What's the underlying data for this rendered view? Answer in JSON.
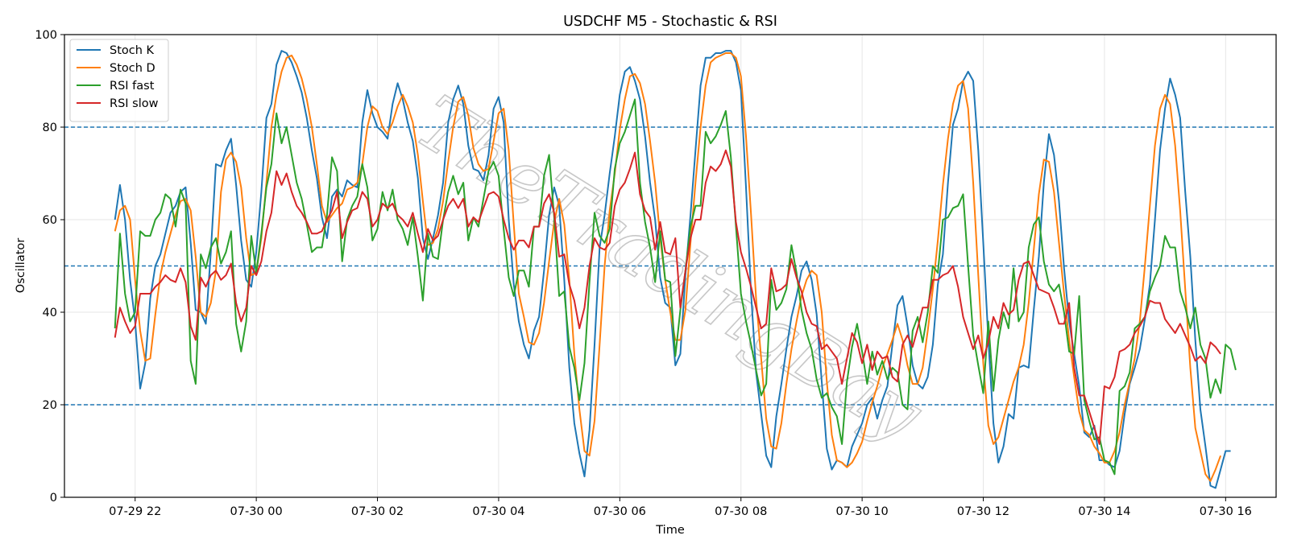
{
  "chart_data": {
    "type": "line",
    "title": "USDCHF M5 - Stochastic & RSI",
    "xlabel": "Time",
    "ylabel": "Oscillator",
    "ylim": [
      0,
      100
    ],
    "yticks": [
      0,
      20,
      40,
      60,
      80,
      100
    ],
    "xtick_labels": [
      "07-29 22",
      "07-30 00",
      "07-30 02",
      "07-30 04",
      "07-30 06",
      "07-30 08",
      "07-30 10",
      "07-30 12",
      "07-30 14",
      "07-30 16"
    ],
    "x_start": "2025-07-29 21:40",
    "x_step_minutes": 5,
    "x_range": [
      "2025-07-29 20:50",
      "2025-07-30 16:50"
    ],
    "reference_lines": [
      {
        "value": 80,
        "style": "dashed",
        "color": "#1f77b4"
      },
      {
        "value": 50,
        "style": "dashed",
        "color": "#1f77b4"
      },
      {
        "value": 20,
        "style": "dashed",
        "color": "#1f77b4"
      }
    ],
    "grid": true,
    "legend_position": "top-left",
    "watermark": "TheTradingBay",
    "series": [
      {
        "name": "Stoch K",
        "color": "#1f77b4",
        "values": [
          60,
          67.5,
          60,
          47,
          38,
          23.5,
          29,
          43,
          50,
          52.5,
          57,
          61.5,
          63,
          66,
          67,
          55,
          40.5,
          40,
          37.5,
          53,
          72,
          71.5,
          75,
          77.5,
          67.5,
          55.5,
          47,
          45.5,
          53,
          66,
          82,
          85,
          93.5,
          96.5,
          96,
          94,
          91,
          87.5,
          82,
          75,
          69,
          60.5,
          56,
          65,
          66.5,
          65,
          68.5,
          67.5,
          67,
          81,
          88,
          83,
          80,
          79,
          77.5,
          85,
          89.5,
          86,
          81,
          77,
          69,
          56,
          51.5,
          56,
          61,
          68,
          81,
          86,
          89,
          85,
          76,
          71,
          70.5,
          68.5,
          74,
          84,
          86.5,
          81,
          60,
          46,
          38,
          33,
          30,
          36,
          39,
          49,
          61,
          67,
          63,
          47,
          28,
          16,
          9.5,
          4.5,
          14.5,
          33,
          54,
          61,
          70,
          78,
          87,
          92,
          93,
          90,
          86,
          78,
          68,
          60,
          47.5,
          42,
          41,
          28.5,
          31,
          48,
          61,
          75,
          89,
          95,
          95,
          96,
          96,
          96.5,
          96.5,
          94,
          88,
          67,
          44,
          27,
          18,
          9,
          6.5,
          17.5,
          24.5,
          32,
          39,
          43.5,
          49,
          51,
          47,
          39.5,
          25,
          10.5,
          6,
          8,
          7.5,
          6.5,
          11,
          13.5,
          16,
          20,
          21.5,
          17,
          21,
          24,
          33,
          41.5,
          43.5,
          37,
          28.5,
          24.5,
          23.5,
          26,
          33,
          46,
          52.5,
          68,
          80.5,
          84,
          90,
          92,
          90,
          75,
          55,
          34,
          16,
          7.5,
          11,
          18,
          17,
          28,
          28.5,
          28,
          40.5,
          52,
          68,
          78.5,
          74,
          64,
          49.5,
          38,
          31,
          24,
          14,
          13,
          15.5,
          8,
          8,
          7,
          6.5,
          10,
          18,
          24.5,
          28,
          32,
          38.5,
          46,
          60,
          75,
          84,
          90.5,
          87,
          82,
          66,
          52,
          34,
          19,
          11,
          2.5,
          2,
          6,
          10,
          10
        ]
      },
      {
        "name": "Stoch D",
        "color": "#ff7f0e",
        "values": [
          57.5,
          62,
          63,
          60,
          47,
          36,
          29.5,
          30,
          39.5,
          48,
          53,
          57,
          61,
          64,
          64.5,
          62,
          52,
          40,
          39,
          42,
          49,
          66,
          73,
          74.5,
          72.5,
          67,
          56,
          48,
          48.5,
          56,
          68,
          80,
          87,
          92,
          95,
          95.5,
          93.5,
          90.5,
          86,
          80,
          72,
          63,
          59.5,
          61,
          62.5,
          63.5,
          66.5,
          67,
          68,
          72,
          80,
          84.5,
          83.5,
          80,
          78.5,
          81,
          84.5,
          87,
          84.5,
          81,
          74,
          64,
          54.5,
          55,
          58,
          64,
          72.5,
          80,
          85.5,
          86.5,
          82.5,
          75.5,
          72,
          70.5,
          71,
          77,
          83,
          84,
          75,
          59,
          44,
          39,
          33.5,
          33,
          35.5,
          42,
          51,
          59.5,
          64.5,
          59,
          47,
          31,
          19,
          10,
          9,
          16.5,
          33,
          50,
          62,
          70,
          79.5,
          86,
          91,
          91.5,
          89.5,
          85,
          77,
          68,
          56,
          47,
          40,
          34,
          34,
          40.5,
          55,
          68,
          80,
          89,
          94,
          95,
          95.5,
          96,
          96,
          95,
          91,
          78,
          61,
          43,
          30,
          17,
          11,
          10.5,
          16,
          24.5,
          32,
          38,
          43.5,
          47,
          49,
          48,
          40,
          25,
          13.5,
          8,
          7.5,
          6.5,
          7.5,
          9.5,
          12,
          16.5,
          20.5,
          24,
          28,
          31,
          34,
          37.5,
          34,
          28.5,
          24.5,
          24.5,
          28,
          36,
          45,
          55.5,
          67.5,
          77.5,
          85,
          89,
          90,
          84,
          68,
          48,
          29,
          15.5,
          11.5,
          13,
          17,
          21,
          25,
          28,
          33,
          42,
          53.5,
          65.5,
          73,
          72.5,
          66,
          55,
          44,
          34,
          26,
          18.5,
          14.5,
          13.5,
          11,
          9.5,
          7.5,
          7.5,
          10,
          14,
          20,
          25,
          30,
          38,
          50,
          63,
          76,
          84,
          87,
          85,
          76,
          62,
          45,
          28,
          15,
          10,
          5,
          3.5,
          6,
          9
        ]
      },
      {
        "name": "RSI fast",
        "color": "#2ca02c",
        "values": [
          36.5,
          57,
          44,
          38,
          40,
          57.5,
          56.5,
          56.5,
          60,
          61.5,
          65.5,
          64.5,
          58.5,
          66.5,
          63.5,
          29.5,
          24.5,
          52.5,
          49.5,
          54,
          56,
          50.5,
          53,
          57.5,
          37.5,
          31.5,
          38,
          56.5,
          48.5,
          57,
          67,
          72,
          83,
          76.5,
          80,
          74,
          68,
          64.5,
          59,
          53,
          54,
          54,
          61,
          73.5,
          70.5,
          51,
          60,
          63,
          65,
          72,
          67,
          55.5,
          58,
          66,
          62,
          66.5,
          60,
          58,
          54.5,
          60.5,
          52,
          42.5,
          57,
          52,
          51.5,
          60,
          66,
          69.5,
          65.5,
          68,
          55.5,
          60.5,
          58.5,
          64.5,
          70.5,
          72.5,
          69.5,
          58,
          47.5,
          43.5,
          49,
          49,
          45.5,
          58.5,
          58.5,
          69.5,
          74,
          60.5,
          43.5,
          44.5,
          32.5,
          28,
          21,
          29,
          46.5,
          61.5,
          56.5,
          55,
          58,
          71,
          76.5,
          79,
          82.5,
          86,
          68,
          59.5,
          54,
          46.5,
          57.5,
          47,
          46.5,
          30.5,
          40.5,
          49,
          58.5,
          63,
          63,
          79,
          76.5,
          78,
          80.5,
          83.5,
          73.5,
          58.5,
          44,
          38,
          33,
          27.5,
          22,
          24.5,
          47,
          40.5,
          42,
          45,
          54.5,
          48.5,
          40.5,
          35.5,
          32,
          25.5,
          21.5,
          22.5,
          19.5,
          17.5,
          11.5,
          25,
          32.5,
          37.5,
          31.5,
          24.5,
          31.5,
          26.5,
          29.5,
          25.5,
          28,
          27,
          20,
          19,
          36,
          39,
          33.5,
          40,
          50,
          48.5,
          60,
          60.5,
          62.5,
          63,
          65.5,
          50,
          35,
          28.5,
          22.5,
          38,
          23,
          34,
          40,
          36.5,
          49.5,
          38,
          40,
          54,
          59,
          60.5,
          51,
          46,
          44.5,
          46,
          40,
          31.5,
          31,
          43.5,
          21,
          16.5,
          12.5,
          13,
          8,
          7.5,
          5,
          23,
          24,
          27,
          36.5,
          37.5,
          39,
          44.5,
          47.5,
          50,
          56.5,
          54,
          54,
          44.5,
          41,
          36.5,
          41,
          33,
          30,
          21.5,
          25.5,
          22.5,
          33,
          32,
          27.5
        ]
      },
      {
        "name": "RSI slow",
        "color": "#d62728",
        "values": [
          34.5,
          41,
          38,
          35.5,
          37,
          44,
          44,
          44,
          45.5,
          46.5,
          48,
          47,
          46.5,
          49.5,
          46.5,
          37,
          34,
          47.5,
          45.5,
          48,
          49,
          47,
          48,
          50.5,
          42,
          38,
          41,
          50,
          48,
          51,
          57.5,
          61.5,
          70.5,
          67.5,
          70,
          66,
          63,
          61.5,
          59.5,
          57,
          57,
          57.5,
          60,
          62,
          66,
          56,
          59.5,
          62,
          62.5,
          66,
          64.5,
          58.5,
          60,
          63.5,
          62.5,
          63.5,
          61,
          60,
          58.5,
          61.5,
          57,
          53,
          58,
          55.5,
          56.5,
          60,
          63,
          64.5,
          62.5,
          64.5,
          58.5,
          60.5,
          59.5,
          62.5,
          65.5,
          66,
          65,
          60,
          56,
          53.5,
          55.5,
          55.5,
          54,
          58.5,
          58.5,
          63.5,
          65.5,
          61.5,
          52,
          52.5,
          46,
          42.5,
          36.5,
          41,
          50,
          56,
          54,
          53.5,
          55,
          63,
          66.5,
          68,
          71,
          74.5,
          65.5,
          62,
          60.5,
          53.5,
          59.5,
          53,
          52.5,
          56,
          41,
          49,
          56,
          60,
          60,
          68,
          71.5,
          70.5,
          72,
          75,
          71.5,
          59.5,
          53,
          49.5,
          45.5,
          41,
          36.5,
          37.5,
          49.5,
          44.5,
          45,
          46,
          51.5,
          47.5,
          44.5,
          40,
          37.5,
          37,
          32,
          33,
          31.5,
          30,
          24.5,
          30,
          35.5,
          33.5,
          29,
          33,
          27.5,
          31.5,
          30,
          30.5,
          26,
          25,
          33,
          35,
          32.5,
          36.5,
          41,
          41,
          47,
          47,
          48,
          48.5,
          50,
          45.5,
          39,
          35.5,
          32,
          35,
          30,
          33.5,
          39,
          36.5,
          42,
          39.5,
          40.5,
          47,
          50.5,
          51,
          48,
          45,
          44.5,
          44,
          41,
          37.5,
          37.5,
          42,
          28,
          22,
          22,
          18.5,
          15,
          11.5,
          24,
          23.5,
          26,
          31.5,
          32,
          33,
          35.5,
          37,
          39,
          42.5,
          42,
          42,
          38.5,
          37,
          35.5,
          37.5,
          35,
          32.5,
          29.5,
          30.5,
          29,
          33.5,
          32.5,
          31
        ]
      }
    ]
  }
}
